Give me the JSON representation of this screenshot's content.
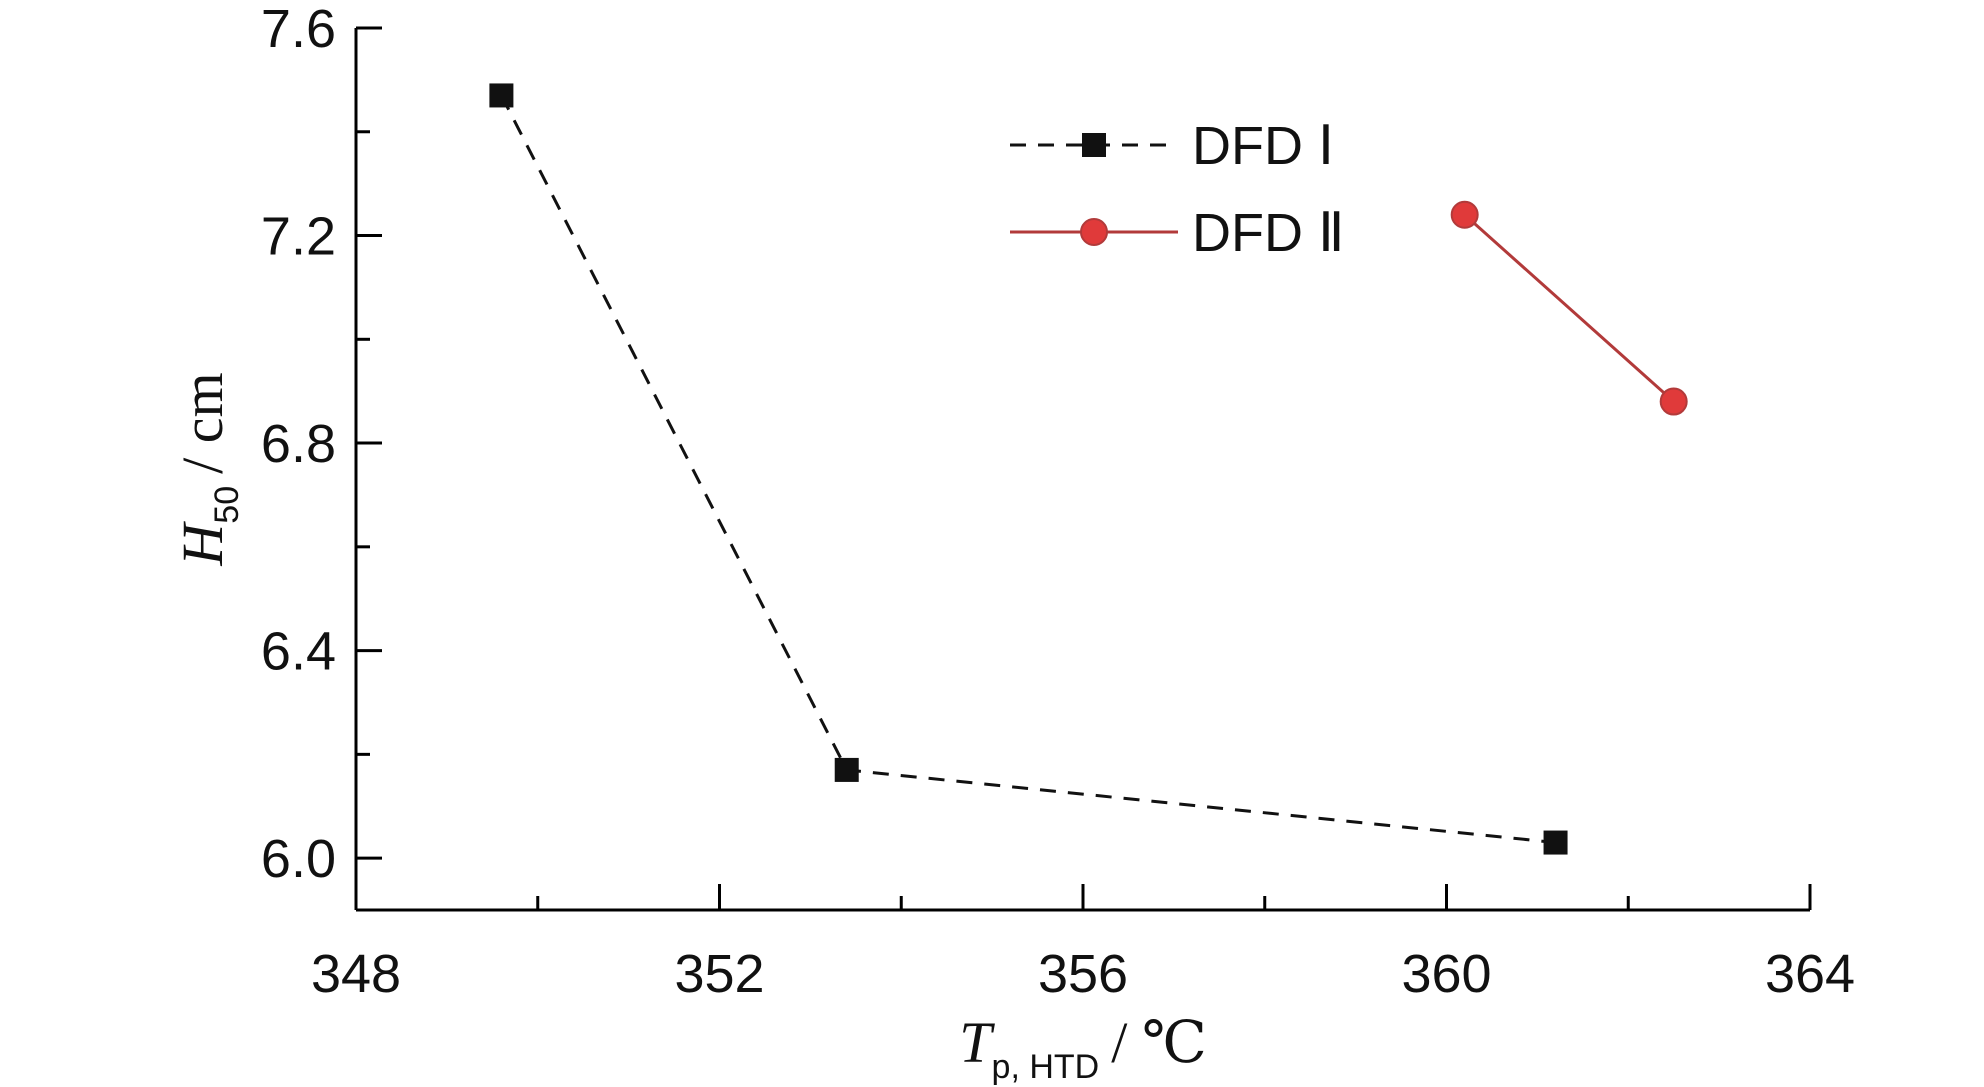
{
  "chart_data": {
    "type": "line",
    "xlabel": {
      "main": "T",
      "sub": "p, HTD",
      "unit": "/ ℃"
    },
    "ylabel": {
      "main": "H",
      "sub": "50",
      "unit": "/ cm"
    },
    "xlim": [
      348,
      364
    ],
    "ylim": [
      5.9,
      7.6
    ],
    "x_ticks": [
      348,
      352,
      356,
      360,
      364
    ],
    "x_tick_labels": [
      "348",
      "352",
      "356",
      "360",
      "364"
    ],
    "x_minor_ticks": [
      350,
      354,
      358,
      362
    ],
    "y_ticks": [
      6.0,
      6.4,
      6.8,
      7.2,
      7.6
    ],
    "y_tick_labels": [
      "6.0",
      "6.4",
      "6.8",
      "7.2",
      "7.6"
    ],
    "y_minor_ticks": [
      6.2,
      6.6,
      7.0,
      7.4
    ],
    "legend_position": "top-center",
    "series": [
      {
        "name": "DFD Ⅰ",
        "marker": "square",
        "line_style": "dashed",
        "color": "#111111",
        "points": [
          {
            "x": 349.6,
            "y": 7.47
          },
          {
            "x": 353.4,
            "y": 6.17
          },
          {
            "x": 361.2,
            "y": 6.03
          }
        ]
      },
      {
        "name": "DFD Ⅱ",
        "marker": "circle",
        "line_style": "solid",
        "color": "#e03a3a",
        "line_color": "#b23a3a",
        "points": [
          {
            "x": 360.2,
            "y": 7.24
          },
          {
            "x": 362.5,
            "y": 6.88
          }
        ]
      }
    ]
  }
}
